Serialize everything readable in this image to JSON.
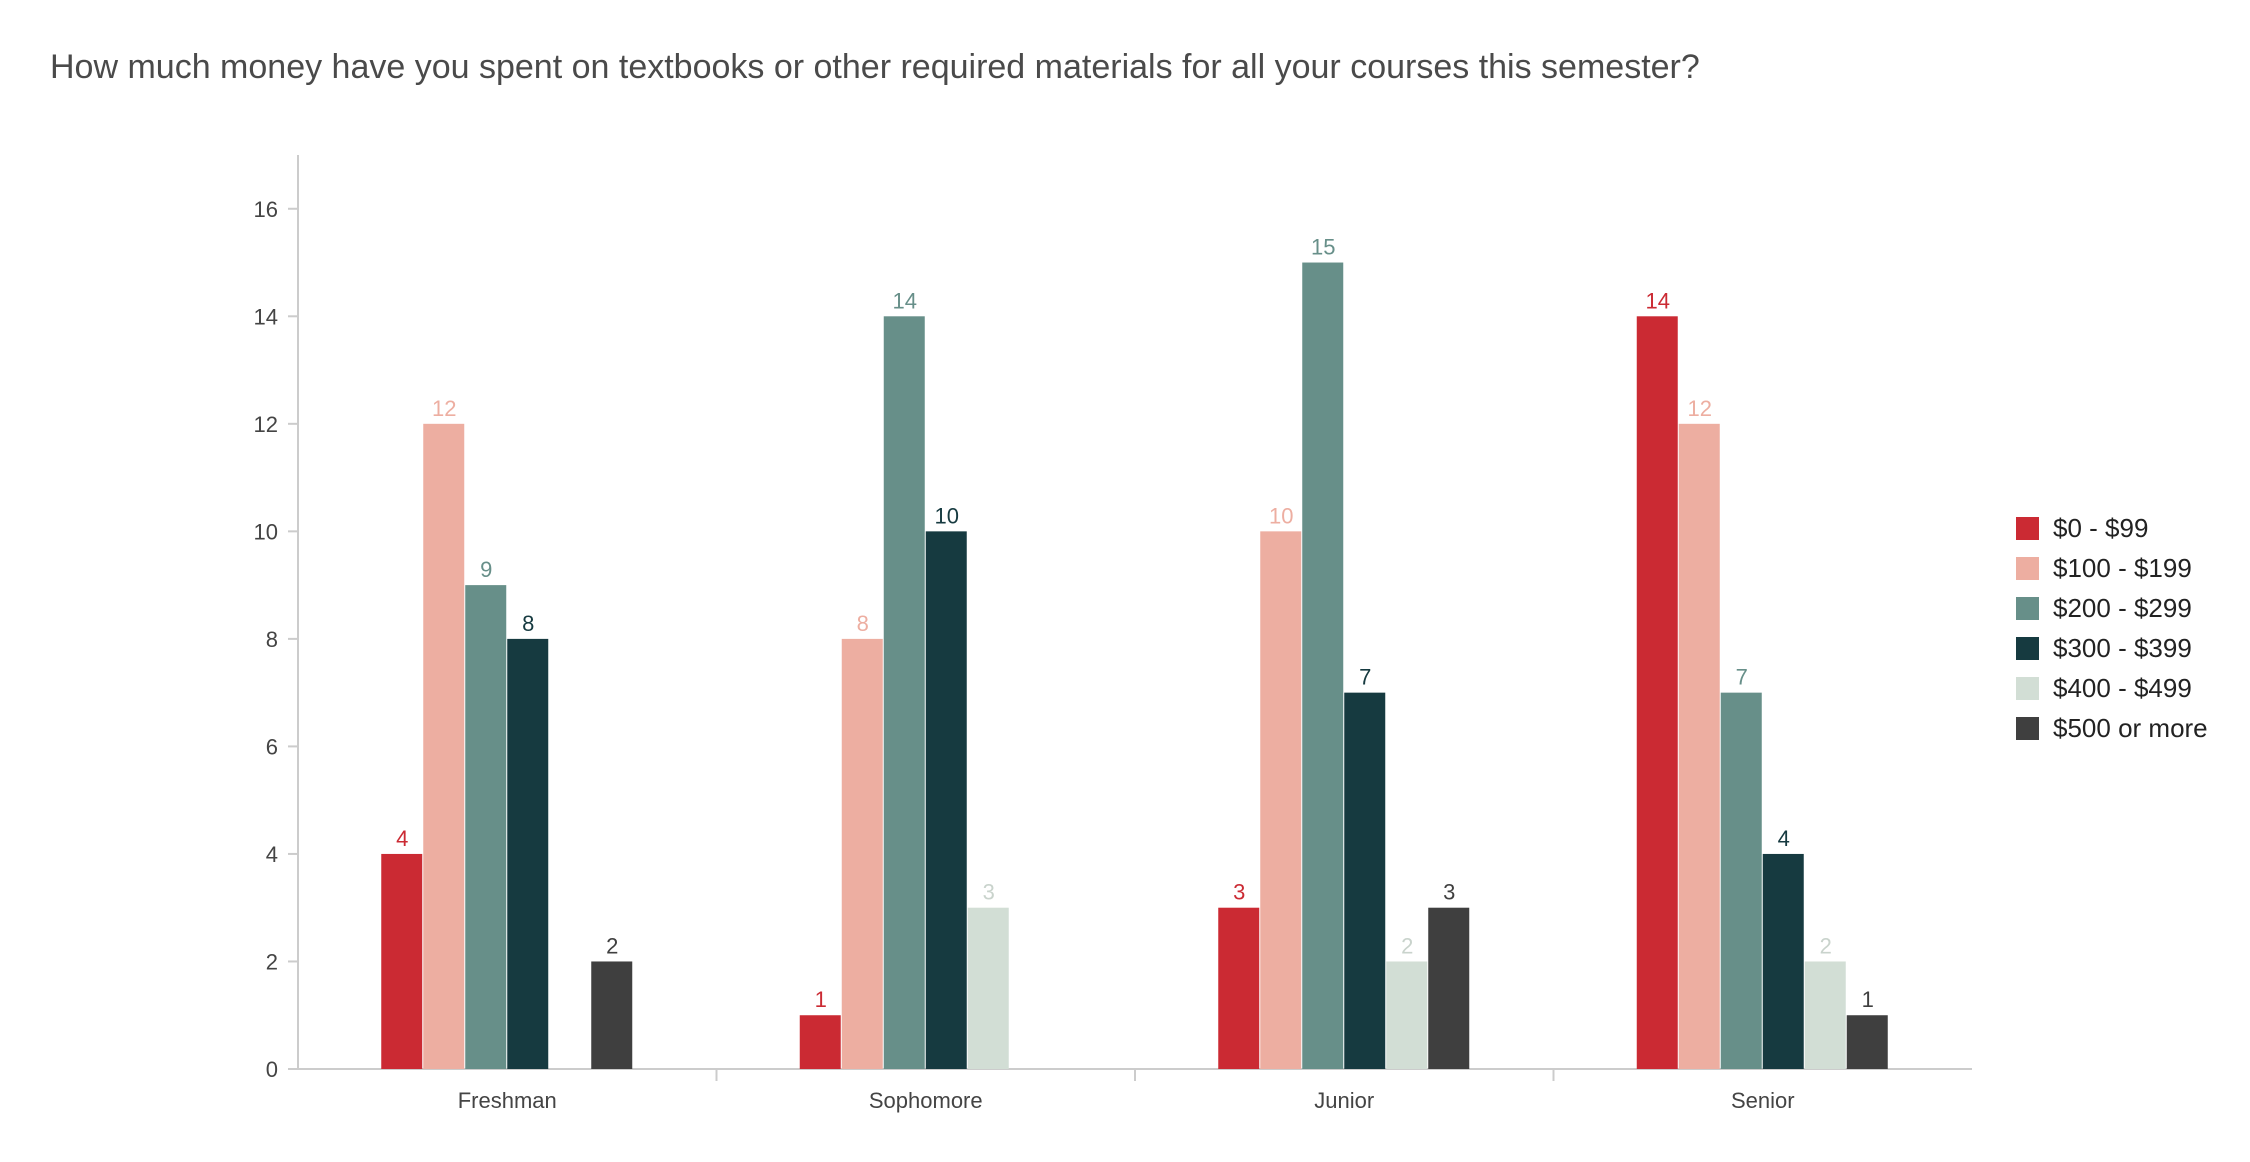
{
  "chart_data": {
    "type": "bar",
    "title": "How much money have you spent on textbooks or other required materials for all your courses this semester?",
    "categories": [
      "Freshman",
      "Sophomore",
      "Junior",
      "Senior"
    ],
    "ylim": [
      0,
      17
    ],
    "yticks": [
      0,
      2,
      4,
      6,
      8,
      10,
      12,
      14,
      16
    ],
    "grid": false,
    "legend_position": "right",
    "series": [
      {
        "name": "$0 - $99",
        "color": "#cb2a33",
        "values": [
          4,
          1,
          3,
          14
        ]
      },
      {
        "name": "$100 - $199",
        "color": "#edaea1",
        "values": [
          12,
          8,
          10,
          12
        ]
      },
      {
        "name": "$200 - $299",
        "color": "#678f89",
        "values": [
          9,
          14,
          15,
          7
        ]
      },
      {
        "name": "$300 - $399",
        "color": "#163a40",
        "values": [
          8,
          10,
          7,
          4
        ]
      },
      {
        "name": "$400 - $499",
        "color": "#d2ded5",
        "values": [
          null,
          3,
          2,
          2
        ]
      },
      {
        "name": "$500 or more",
        "color": "#3f3f3f",
        "values": [
          2,
          null,
          3,
          1
        ]
      }
    ]
  }
}
